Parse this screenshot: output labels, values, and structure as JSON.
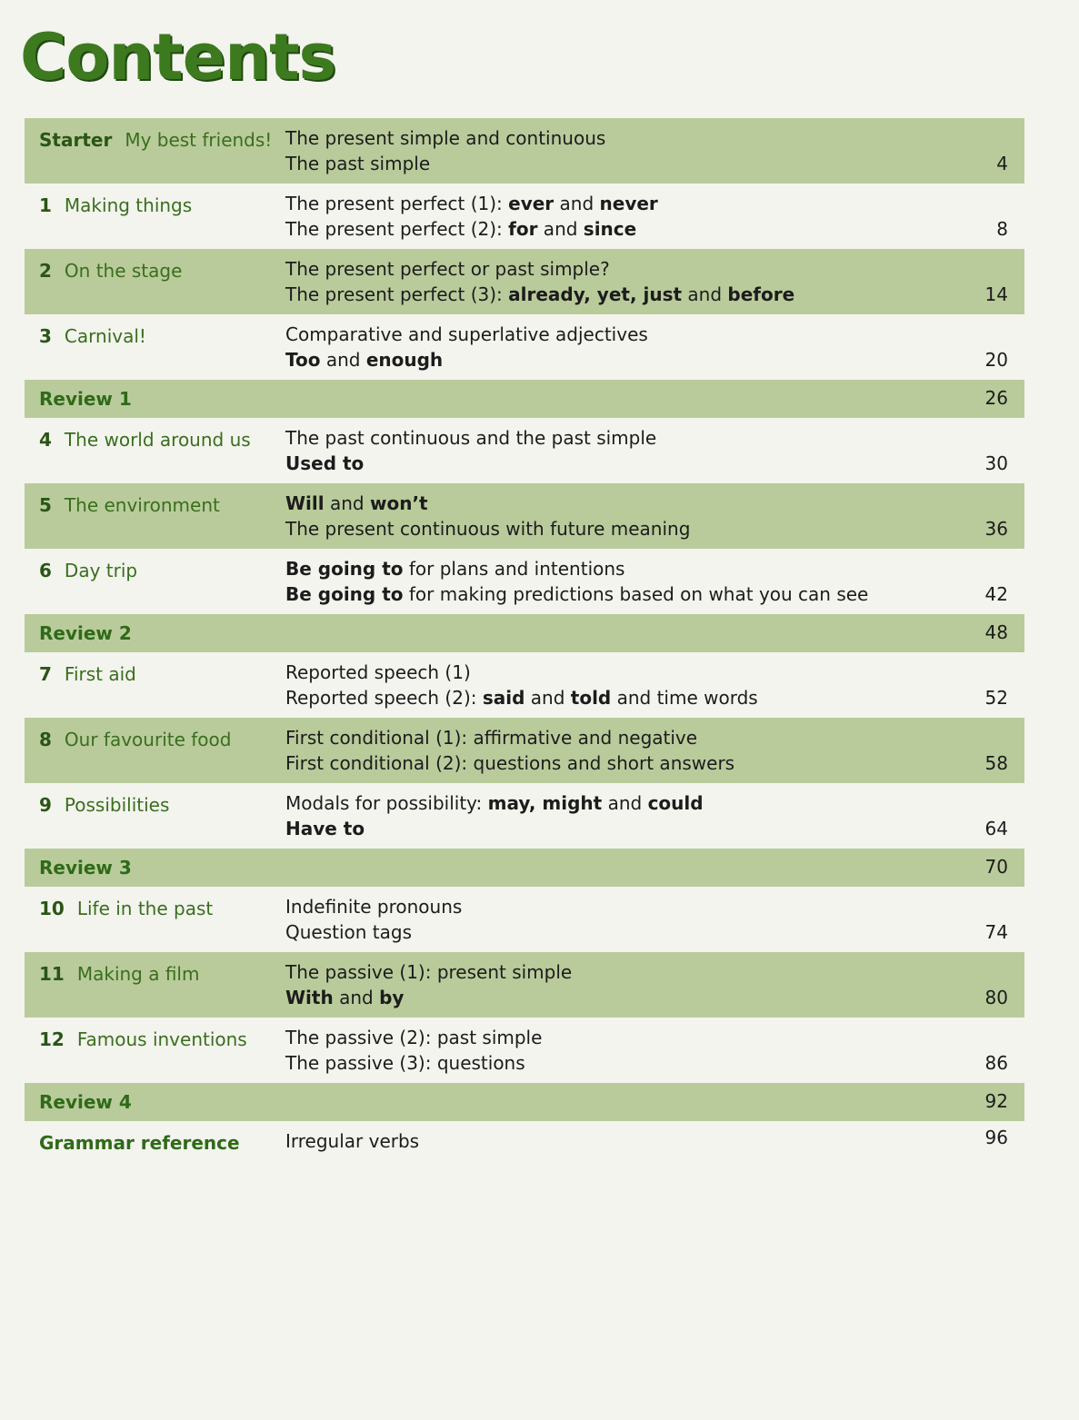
{
  "header": {
    "title": "Contents"
  },
  "table": {
    "rows": [
      {
        "number": "Starter",
        "title": "My best friends!",
        "lines": [
          [
            {
              "text": "The present simple and continuous"
            }
          ],
          [
            {
              "text": "The past simple"
            }
          ]
        ],
        "page": 4
      },
      {
        "number": "1",
        "title": "Making things",
        "lines": [
          [
            {
              "text": "The present perfect (1): "
            },
            {
              "text": "ever",
              "bold": true
            },
            {
              "text": " and "
            },
            {
              "text": "never",
              "bold": true
            }
          ],
          [
            {
              "text": "The present perfect (2): "
            },
            {
              "text": "for",
              "bold": true
            },
            {
              "text": " and "
            },
            {
              "text": "since",
              "bold": true
            }
          ]
        ],
        "page": 8
      },
      {
        "number": "2",
        "title": "On the stage",
        "lines": [
          [
            {
              "text": "The present perfect or past simple?"
            }
          ],
          [
            {
              "text": "The present perfect (3): "
            },
            {
              "text": "already, yet, just",
              "bold": true
            },
            {
              "text": " and "
            },
            {
              "text": "before",
              "bold": true
            }
          ]
        ],
        "page": 14
      },
      {
        "number": "3",
        "title": "Carnival!",
        "lines": [
          [
            {
              "text": "Comparative and superlative adjectives"
            }
          ],
          [
            {
              "text": "Too",
              "bold": true
            },
            {
              "text": " and "
            },
            {
              "text": "enough",
              "bold": true
            }
          ]
        ],
        "page": 20
      },
      {
        "title": "Review 1",
        "page": 26
      },
      {
        "number": "4",
        "title": "The world around us",
        "lines": [
          [
            {
              "text": "The past continuous and the past simple"
            }
          ],
          [
            {
              "text": "Used to",
              "bold": true
            }
          ]
        ],
        "page": 30
      },
      {
        "number": "5",
        "title": "The environment",
        "lines": [
          [
            {
              "text": "Will",
              "bold": true
            },
            {
              "text": " and "
            },
            {
              "text": "won’t",
              "bold": true
            }
          ],
          [
            {
              "text": "The present continuous with future meaning"
            }
          ]
        ],
        "page": 36
      },
      {
        "number": "6",
        "title": "Day trip",
        "lines": [
          [
            {
              "text": "Be going to",
              "bold": true
            },
            {
              "text": " for plans and intentions"
            }
          ],
          [
            {
              "text": "Be going to",
              "bold": true
            },
            {
              "text": " for making predictions based on what you can see"
            }
          ]
        ],
        "page": 42
      },
      {
        "title": "Review 2",
        "page": 48
      },
      {
        "number": "7",
        "title": "First aid",
        "lines": [
          [
            {
              "text": "Reported speech (1)"
            }
          ],
          [
            {
              "text": "Reported speech (2): "
            },
            {
              "text": "said",
              "bold": true
            },
            {
              "text": " and "
            },
            {
              "text": "told",
              "bold": true
            },
            {
              "text": " and time words"
            }
          ]
        ],
        "page": 52
      },
      {
        "number": "8",
        "title": "Our favourite food",
        "lines": [
          [
            {
              "text": "First conditional (1): affirmative and negative"
            }
          ],
          [
            {
              "text": "First conditional (2): questions and short answers"
            }
          ]
        ],
        "page": 58
      },
      {
        "number": "9",
        "title": "Possibilities",
        "lines": [
          [
            {
              "text": "Modals for possibility: "
            },
            {
              "text": "may, might",
              "bold": true
            },
            {
              "text": " and "
            },
            {
              "text": "could",
              "bold": true
            }
          ],
          [
            {
              "text": "Have to",
              "bold": true
            }
          ]
        ],
        "page": 64
      },
      {
        "title": "Review 3",
        "page": 70
      },
      {
        "number": "10",
        "title": "Life in the past",
        "lines": [
          [
            {
              "text": "Indefinite pronouns"
            }
          ],
          [
            {
              "text": "Question tags"
            }
          ]
        ],
        "page": 74
      },
      {
        "number": "11",
        "title": "Making a film",
        "lines": [
          [
            {
              "text": "The passive (1): present simple"
            }
          ],
          [
            {
              "text": "With",
              "bold": true
            },
            {
              "text": " and "
            },
            {
              "text": "by",
              "bold": true
            }
          ]
        ],
        "page": 80
      },
      {
        "number": "12",
        "title": "Famous inventions",
        "lines": [
          [
            {
              "text": "The passive (2): past simple"
            }
          ],
          [
            {
              "text": "The passive (3): questions"
            }
          ]
        ],
        "page": 86
      },
      {
        "title": "Review 4",
        "page": 92
      },
      {
        "title": "Grammar reference",
        "lines": [
          [
            {
              "text": "Irregular verbs"
            }
          ]
        ],
        "page": 96,
        "heading": true
      }
    ]
  }
}
